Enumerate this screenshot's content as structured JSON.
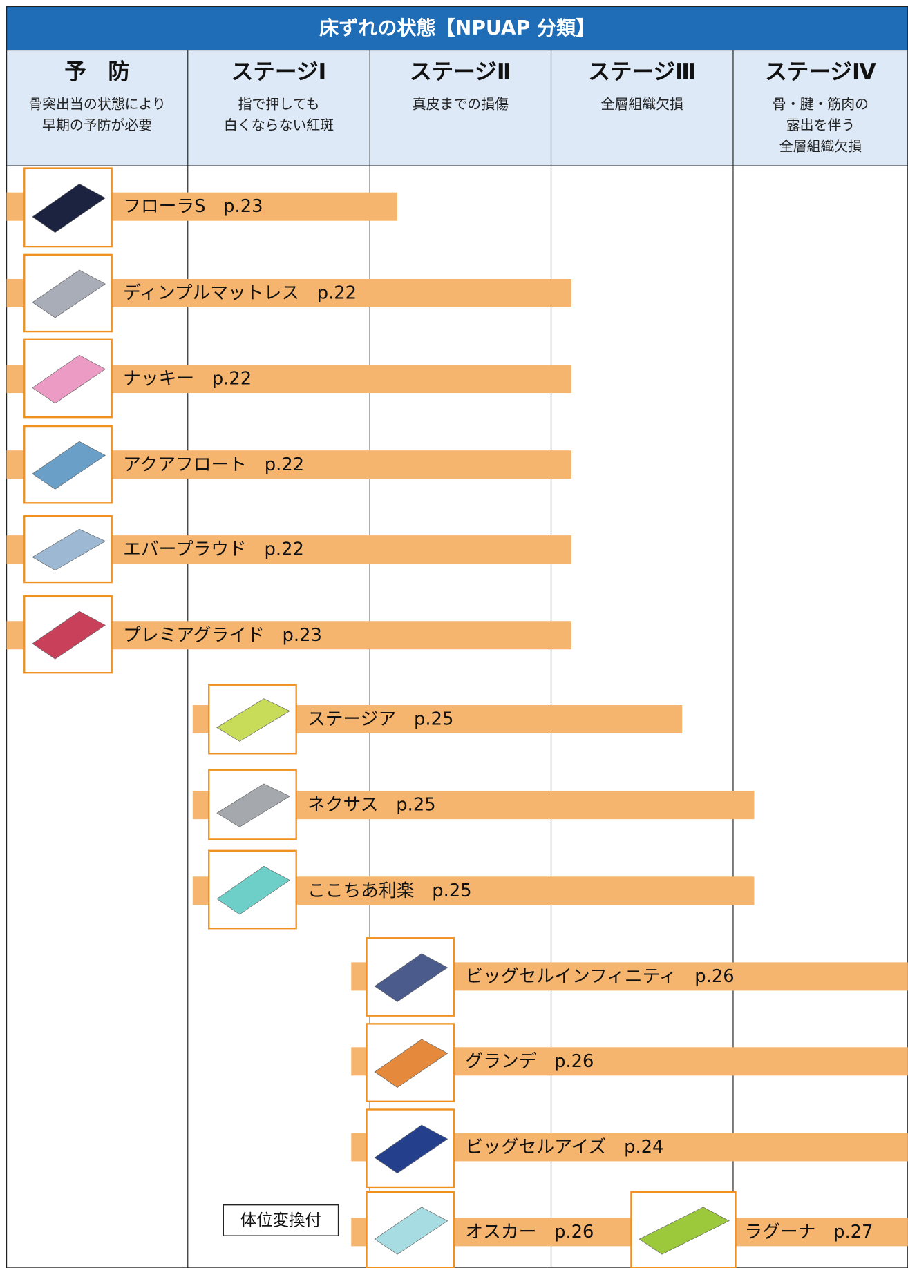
{
  "header": {
    "title": "床ずれの状態【NPUAP 分類】"
  },
  "columns": [
    {
      "name": "予　防",
      "lines": [
        "骨突出当の状態により",
        "早期の予防が必要"
      ]
    },
    {
      "name": "ステージⅠ",
      "lines": [
        "指で押しても",
        "白くならない紅斑"
      ]
    },
    {
      "name": "ステージⅡ",
      "lines": [
        "真皮までの損傷"
      ]
    },
    {
      "name": "ステージⅢ",
      "lines": [
        "全層組織欠損"
      ]
    },
    {
      "name": "ステージⅣ",
      "lines": [
        "骨・腱・筋肉の",
        "露出を伴う",
        "全層組織欠損"
      ]
    }
  ],
  "products": [
    {
      "label": "フローラS　p.23"
    },
    {
      "label": "ディンプルマットレス　p.22"
    },
    {
      "label": "ナッキー　p.22"
    },
    {
      "label": "アクアフロート　p.22"
    },
    {
      "label": "エバープラウド　p.22"
    },
    {
      "label": "プレミアグライド　p.23"
    },
    {
      "label": "ステージア　p.25"
    },
    {
      "label": "ネクサス　p.25"
    },
    {
      "label": "ここちあ利楽　p.25"
    },
    {
      "label": "ビッグセルインフィニティ　p.26"
    },
    {
      "label": "グランデ　p.26"
    },
    {
      "label": "ビッグセルアイズ　p.24"
    },
    {
      "label": "オスカー　p.26"
    },
    {
      "label": "ラグーナ　p.27"
    }
  ],
  "note": "体位変換付"
}
